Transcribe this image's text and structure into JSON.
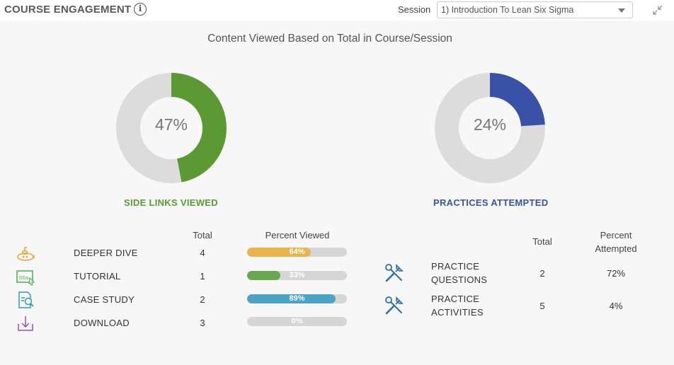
{
  "header": {
    "title": "COURSE ENGAGEMENT",
    "info_icon": "info-icon",
    "session_label": "Session",
    "session_value": "1) Introduction To Lean Six Sigma",
    "collapse_icon": "collapse-icon"
  },
  "heading": "Content Viewed Based on Total in Course/Session",
  "donuts": [
    {
      "percent_text": "47%",
      "value": 0.47,
      "label": "SIDE LINKS VIEWED",
      "color": "#5b9a32",
      "track": "#dcdcdc"
    },
    {
      "percent_text": "24%",
      "value": 0.24,
      "label": "PRACTICES ATTEMPTED",
      "color": "#3a51a8",
      "track": "#dcdcdc"
    }
  ],
  "side_links": {
    "col_total": "Total",
    "col_percent": "Percent Viewed",
    "rows": [
      {
        "icon": "submarine-icon",
        "label": "DEEPER DIVE",
        "total": "4",
        "percent_text": "64%",
        "value": 0.64,
        "color": "#e9b44c"
      },
      {
        "icon": "tutorial-icon",
        "label": "TUTORIAL",
        "total": "1",
        "percent_text": "33%",
        "value": 0.33,
        "color": "#6aa84f"
      },
      {
        "icon": "case-study-icon",
        "label": "CASE STUDY",
        "total": "2",
        "percent_text": "89%",
        "value": 0.89,
        "color": "#4ba3c7"
      },
      {
        "icon": "download-icon",
        "label": "DOWNLOAD",
        "total": "3",
        "percent_text": "0%",
        "value": 0.0,
        "color": "#9b59b6"
      }
    ]
  },
  "practices": {
    "col_total": "Total",
    "col_percent_line1": "Percent",
    "col_percent_line2": "Attempted",
    "rows": [
      {
        "icon": "tools-icon",
        "label_line1": "PRACTICE",
        "label_line2": "QUESTIONS",
        "total": "2",
        "percent": "72%"
      },
      {
        "icon": "tools-icon",
        "label_line1": "PRACTICE",
        "label_line2": "ACTIVITIES",
        "total": "5",
        "percent": "4%"
      }
    ]
  }
}
